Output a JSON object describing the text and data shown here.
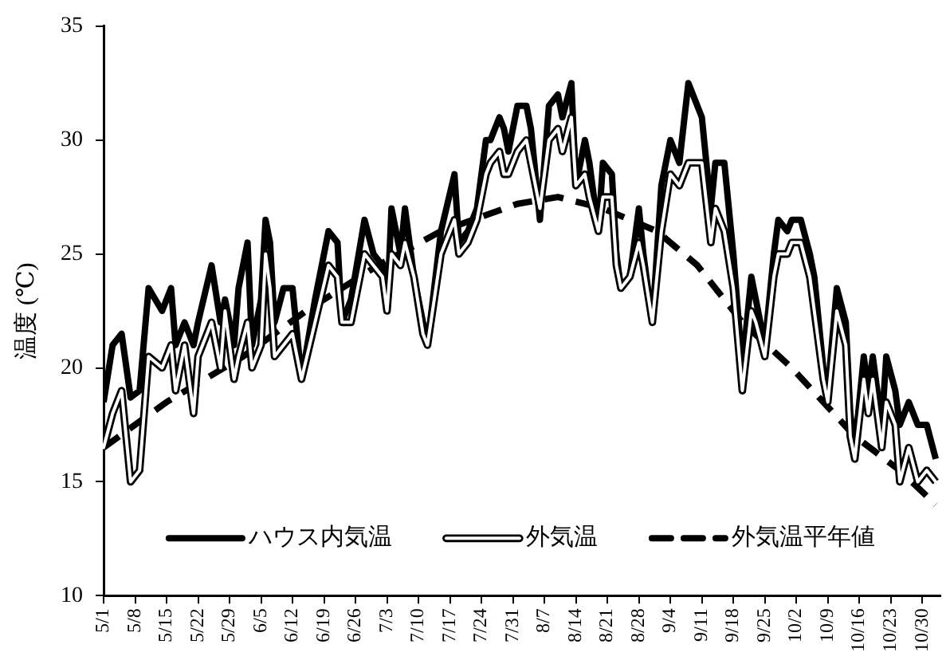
{
  "chart_data": {
    "type": "line",
    "ylabel": "温度 (℃)",
    "xlim": [
      "--05-01",
      "--11-03"
    ],
    "xticks": [
      {
        "value": "--05-01",
        "label": "5/1"
      },
      {
        "value": "--05-08",
        "label": "5/8"
      },
      {
        "value": "--05-15",
        "label": "5/15"
      },
      {
        "value": "--05-22",
        "label": "5/22"
      },
      {
        "value": "--05-29",
        "label": "5/29"
      },
      {
        "value": "--06-05",
        "label": "6/5"
      },
      {
        "value": "--06-12",
        "label": "6/12"
      },
      {
        "value": "--06-19",
        "label": "6/19"
      },
      {
        "value": "--06-26",
        "label": "6/26"
      },
      {
        "value": "--07-03",
        "label": "7/3"
      },
      {
        "value": "--07-10",
        "label": "7/10"
      },
      {
        "value": "--07-17",
        "label": "7/17"
      },
      {
        "value": "--07-24",
        "label": "7/24"
      },
      {
        "value": "--07-31",
        "label": "7/31"
      },
      {
        "value": "--08-07",
        "label": "8/7"
      },
      {
        "value": "--08-14",
        "label": "8/14"
      },
      {
        "value": "--08-21",
        "label": "8/21"
      },
      {
        "value": "--08-28",
        "label": "8/28"
      },
      {
        "value": "--09-04",
        "label": "9/4"
      },
      {
        "value": "--09-11",
        "label": "9/11"
      },
      {
        "value": "--09-18",
        "label": "9/18"
      },
      {
        "value": "--09-25",
        "label": "9/25"
      },
      {
        "value": "--10-02",
        "label": "10/2"
      },
      {
        "value": "--10-09",
        "label": "10/9"
      },
      {
        "value": "--10-16",
        "label": "10/16"
      },
      {
        "value": "--10-23",
        "label": "10/23"
      },
      {
        "value": "--10-30",
        "label": "10/30"
      }
    ],
    "ylim": [
      10,
      35
    ],
    "yticks": [
      10,
      15,
      20,
      25,
      30,
      35
    ],
    "legend": "bottom",
    "x": [
      "--05-01",
      "--05-03",
      "--05-05",
      "--05-07",
      "--05-09",
      "--05-11",
      "--05-14",
      "--05-16",
      "--05-17",
      "--05-19",
      "--05-21",
      "--05-22",
      "--05-25",
      "--05-27",
      "--05-28",
      "--05-30",
      "--05-31",
      "--06-02",
      "--06-03",
      "--06-05",
      "--06-06",
      "--06-07",
      "--06-08",
      "--06-10",
      "--06-12",
      "--06-14",
      "--06-17",
      "--06-20",
      "--06-22",
      "--06-23",
      "--06-25",
      "--06-28",
      "--06-30",
      "--07-02",
      "--07-03",
      "--07-04",
      "--07-06",
      "--07-07",
      "--07-09",
      "--07-11",
      "--07-12",
      "--07-15",
      "--07-18",
      "--07-19",
      "--07-21",
      "--07-23",
      "--07-25",
      "--07-26",
      "--07-28",
      "--07-29",
      "--07-30",
      "--08-01",
      "--08-03",
      "--08-04",
      "--08-06",
      "--08-08",
      "--08-10",
      "--08-11",
      "--08-13",
      "--08-14",
      "--08-16",
      "--08-17",
      "--08-19",
      "--08-20",
      "--08-22",
      "--08-23",
      "--08-24",
      "--08-26",
      "--08-28",
      "--08-29",
      "--08-31",
      "--09-02",
      "--09-04",
      "--09-06",
      "--09-08",
      "--09-09",
      "--09-11",
      "--09-13",
      "--09-14",
      "--09-16",
      "--09-18",
      "--09-20",
      "--09-22",
      "--09-23",
      "--09-25",
      "--09-27",
      "--09-28",
      "--09-30",
      "--10-01",
      "--10-03",
      "--10-05",
      "--10-06",
      "--10-08",
      "--10-09",
      "--10-11",
      "--10-13",
      "--10-14",
      "--10-15",
      "--10-17",
      "--10-18",
      "--10-19",
      "--10-21",
      "--10-22",
      "--10-24",
      "--10-25",
      "--10-27",
      "--10-29",
      "--10-31",
      "--11-02"
    ],
    "series": [
      {
        "name": "ハウス内気温",
        "color": "#000000",
        "line_style": "solid",
        "values": [
          18.5,
          21,
          21.5,
          18.7,
          19,
          23.5,
          22.5,
          23.5,
          21,
          22,
          21,
          22,
          24.5,
          22,
          23,
          21,
          23.5,
          25.5,
          21,
          23,
          26.5,
          25.5,
          22,
          23.5,
          23.5,
          19.5,
          23,
          26,
          25.5,
          22,
          23,
          26.5,
          25,
          24.5,
          22.5,
          27,
          25,
          27,
          24,
          22,
          21,
          26,
          28.5,
          25.5,
          26,
          27,
          30,
          30,
          31,
          30.5,
          29.5,
          31.5,
          31.5,
          30.5,
          26.5,
          31.5,
          32,
          31,
          32.5,
          28,
          30,
          29,
          26,
          29,
          28.5,
          25,
          23.5,
          24,
          27,
          25,
          22,
          28,
          30,
          29,
          32.5,
          32,
          31,
          27,
          29,
          29,
          25,
          20,
          24,
          23,
          21,
          25,
          26.5,
          26,
          26.5,
          26.5,
          25,
          24,
          20,
          19,
          23.5,
          22,
          18,
          16.5,
          20.5,
          19,
          20.5,
          17.5,
          20.5,
          19,
          17.5,
          18.5,
          17.5,
          17.5,
          16
        ]
      },
      {
        "name": "外気温",
        "color": "#000000",
        "line_style": "solid",
        "values": [
          16.5,
          18,
          19,
          15,
          15.5,
          20.5,
          20,
          21,
          19,
          21,
          18,
          20.5,
          22,
          20,
          22.5,
          19.5,
          20.5,
          22,
          20,
          21,
          25,
          23.5,
          20.5,
          21,
          21.5,
          19.5,
          22,
          24.5,
          24,
          22,
          22,
          25,
          24.5,
          24,
          22.5,
          25,
          24.5,
          25.5,
          24,
          21.5,
          21,
          25,
          26.5,
          25,
          25.5,
          26.5,
          28.5,
          29,
          29.5,
          28.5,
          28.5,
          29.5,
          30,
          29,
          27,
          30,
          30.5,
          29.5,
          31,
          28,
          28.5,
          27.5,
          26,
          27.5,
          27.5,
          24.5,
          23.5,
          24,
          25.5,
          24.5,
          22,
          26,
          28.5,
          28,
          29,
          29,
          29,
          25.5,
          27,
          26,
          23.5,
          19,
          22.5,
          22,
          20.5,
          24,
          25,
          25,
          25.5,
          25.5,
          24,
          22.5,
          19.5,
          18.5,
          22.5,
          21,
          17,
          16,
          19.5,
          18,
          19.5,
          16.5,
          18.5,
          17.5,
          15,
          16.5,
          15,
          15.5,
          15
        ]
      },
      {
        "name": "外気温平年値",
        "color": "#000000",
        "line_style": "dashed",
        "x": [
          "--05-01",
          "--05-15",
          "--06-01",
          "--06-15",
          "--07-01",
          "--07-15",
          "--08-01",
          "--08-10",
          "--08-20",
          "--09-01",
          "--09-10",
          "--09-20",
          "--10-01",
          "--10-15",
          "--10-25",
          "--11-02"
        ],
        "values": [
          16.5,
          18.5,
          20.5,
          22.5,
          24.5,
          26,
          27.2,
          27.5,
          27,
          26,
          24.5,
          22,
          20,
          17,
          15.5,
          14
        ]
      }
    ]
  }
}
